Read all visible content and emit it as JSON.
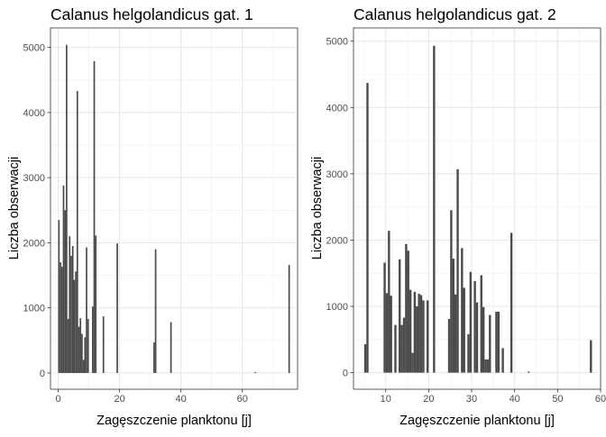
{
  "chart_data": [
    {
      "type": "bar",
      "title": "Calanus helgolandicus gat. 1",
      "xlabel": "Zagęszczenie planktonu [j]",
      "ylabel": "Liczba obserwacji",
      "xlim": [
        -2.5,
        78
      ],
      "ylim": [
        -250,
        5300
      ],
      "xticks": [
        0,
        20,
        40,
        60
      ],
      "yticks": [
        0,
        1000,
        2000,
        3000,
        4000,
        5000
      ],
      "bar_width": 0.5,
      "bar_color": "#4a4a4a",
      "x": [
        0.25,
        0.75,
        1.25,
        1.75,
        2.25,
        2.75,
        3.25,
        3.75,
        4.25,
        4.75,
        5.25,
        5.75,
        6.25,
        6.75,
        7.25,
        7.75,
        8.25,
        8.75,
        9.25,
        9.75,
        11.25,
        11.75,
        12.25,
        14.75,
        19.25,
        31.25,
        31.75,
        36.75,
        64.25,
        75.25
      ],
      "values": [
        2350,
        1700,
        1630,
        2880,
        2500,
        5040,
        830,
        2100,
        1800,
        1950,
        1430,
        1560,
        4330,
        710,
        840,
        600,
        200,
        550,
        1930,
        830,
        1020,
        4790,
        2110,
        870,
        1990,
        470,
        1900,
        780,
        15,
        1660
      ]
    },
    {
      "type": "bar",
      "title": "Calanus helgolandicus gat. 2",
      "xlabel": "Zagęszczenie planktonu [j]",
      "ylabel": "Liczba obserwacji",
      "xlim": [
        2.5,
        60
      ],
      "ylim": [
        -250,
        5200
      ],
      "xticks": [
        10,
        20,
        30,
        40,
        50,
        60
      ],
      "yticks": [
        0,
        1000,
        2000,
        3000,
        4000,
        5000
      ],
      "bar_width": 0.5,
      "bar_color": "#4a4a4a",
      "x": [
        5.25,
        5.75,
        9.75,
        10.25,
        10.75,
        11.25,
        12.25,
        13.25,
        13.75,
        14.25,
        14.75,
        15.25,
        15.75,
        16.25,
        16.75,
        17.25,
        17.75,
        18.25,
        18.75,
        19.75,
        21.25,
        24.75,
        25.25,
        25.75,
        26.25,
        26.75,
        27.75,
        28.25,
        29.25,
        29.75,
        30.75,
        31.25,
        32.25,
        32.75,
        33.25,
        33.75,
        34.25,
        35.75,
        36.25,
        37.25,
        39.25,
        43.25,
        57.75
      ],
      "values": [
        430,
        4370,
        1660,
        1200,
        2140,
        1160,
        720,
        1710,
        720,
        830,
        1940,
        1840,
        1250,
        300,
        1220,
        1000,
        1190,
        1170,
        1090,
        1090,
        4930,
        810,
        2450,
        1720,
        1180,
        3070,
        1880,
        1280,
        580,
        1520,
        1380,
        1060,
        1470,
        990,
        200,
        200,
        870,
        920,
        920,
        370,
        2110,
        15,
        490
      ]
    }
  ]
}
